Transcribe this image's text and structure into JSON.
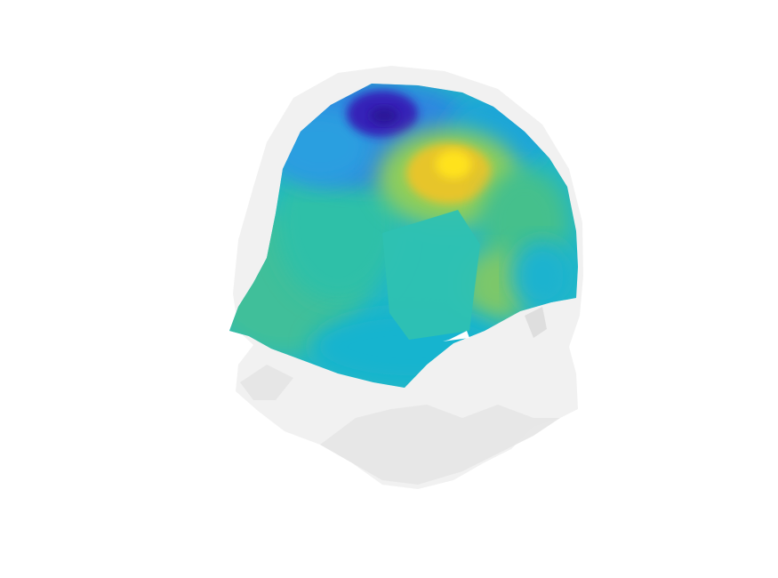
{
  "scene": {
    "subject": "",
    "colormap": {
      "low": "#3a1fb5",
      "mid_low": "#2f7fe0",
      "mid": "#18b7c9",
      "mid_high": "#4fc28a",
      "high": "#ffd21a"
    },
    "head_color": "#efefef",
    "background": "#ffffff"
  }
}
